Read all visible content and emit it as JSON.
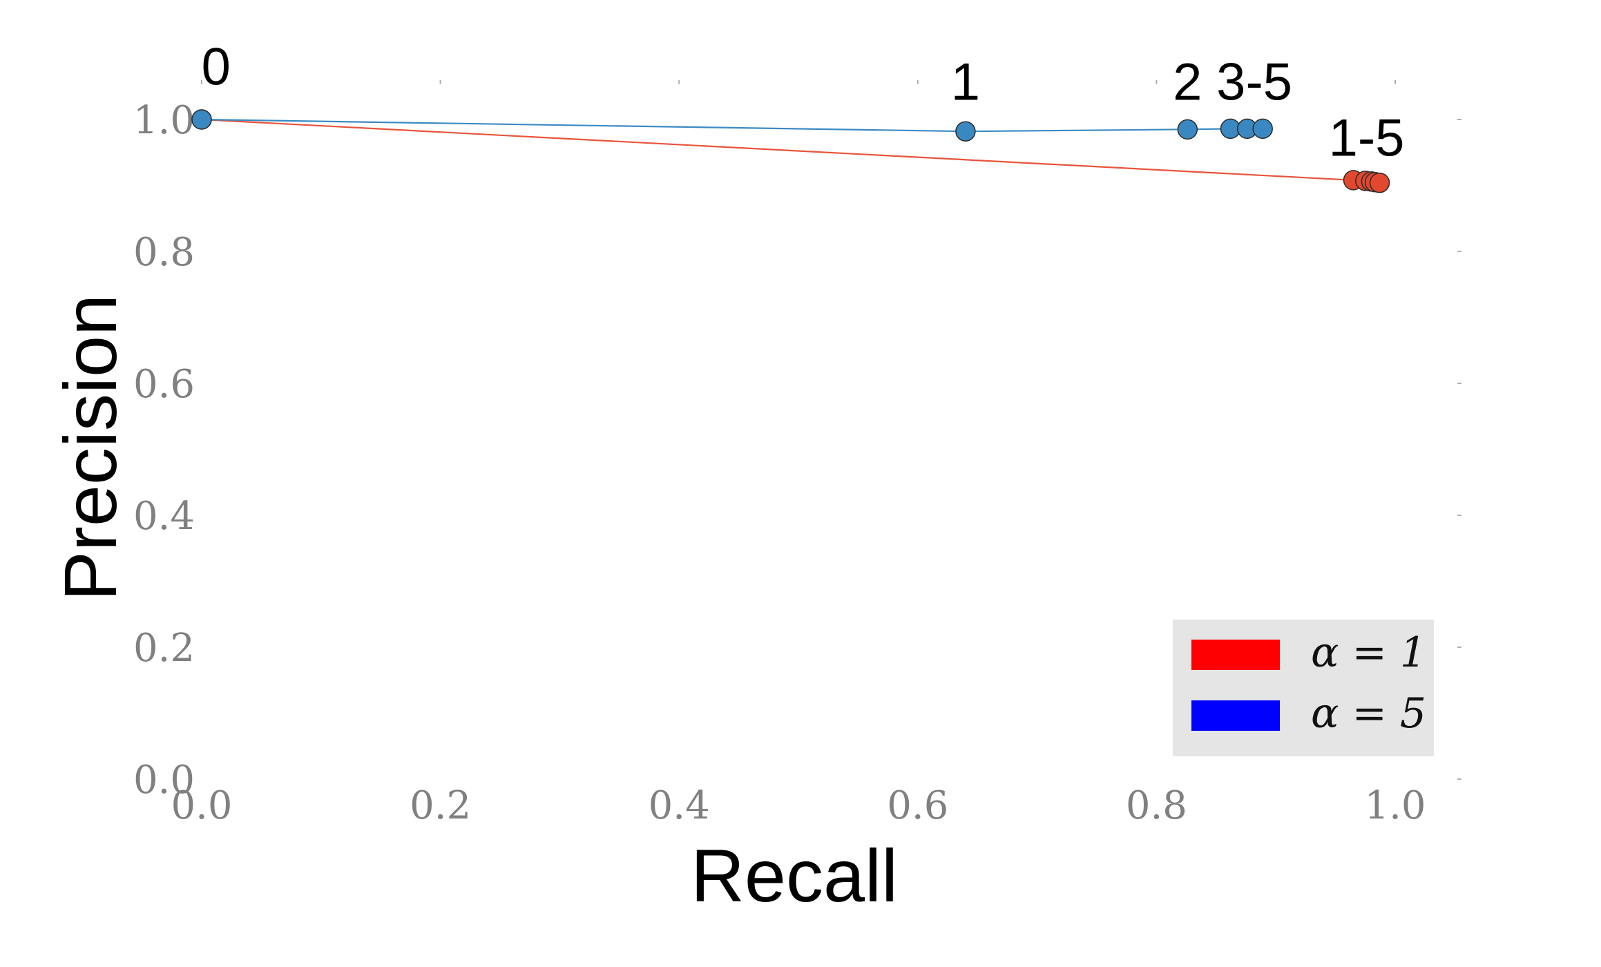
{
  "chart_data": {
    "type": "line",
    "xlabel": "Recall",
    "ylabel": "Precision",
    "xlim": [
      0.0,
      1.05
    ],
    "ylim": [
      0.0,
      1.1
    ],
    "xticks": [
      "0.0",
      "0.2",
      "0.4",
      "0.6",
      "0.8",
      "1.0"
    ],
    "yticks": [
      "0.0",
      "0.2",
      "0.4",
      "0.6",
      "0.8",
      "1.0"
    ],
    "grid": false,
    "legend_position": "lower-right",
    "series": [
      {
        "name": "α = 1",
        "legend_label": "α = 1",
        "legend_color": "#ff0000",
        "line_color": "#e8543a",
        "marker_color": "#e2482e",
        "points": [
          {
            "x": 0.0,
            "y": 1.0
          },
          {
            "x": 0.965,
            "y": 0.908
          },
          {
            "x": 0.975,
            "y": 0.907
          },
          {
            "x": 0.98,
            "y": 0.906
          },
          {
            "x": 0.983,
            "y": 0.905
          },
          {
            "x": 0.987,
            "y": 0.904
          }
        ]
      },
      {
        "name": "α = 5",
        "legend_label": "α = 5",
        "legend_color": "#0000ff",
        "line_color": "#3b8ac4",
        "marker_color": "#3a88c1",
        "points": [
          {
            "x": 0.0,
            "y": 1.0
          },
          {
            "x": 0.64,
            "y": 0.982
          },
          {
            "x": 0.826,
            "y": 0.985
          },
          {
            "x": 0.862,
            "y": 0.986
          },
          {
            "x": 0.876,
            "y": 0.986
          },
          {
            "x": 0.889,
            "y": 0.986
          }
        ]
      }
    ],
    "annotations": [
      {
        "text": "0",
        "x": 0.012,
        "y": 1.053
      },
      {
        "text": "1",
        "x": 0.64,
        "y": 1.03
      },
      {
        "text": "2",
        "x": 0.826,
        "y": 1.03
      },
      {
        "text": "3-5",
        "x": 0.882,
        "y": 1.03
      },
      {
        "text": "1-5",
        "x": 0.976,
        "y": 0.945
      }
    ]
  }
}
